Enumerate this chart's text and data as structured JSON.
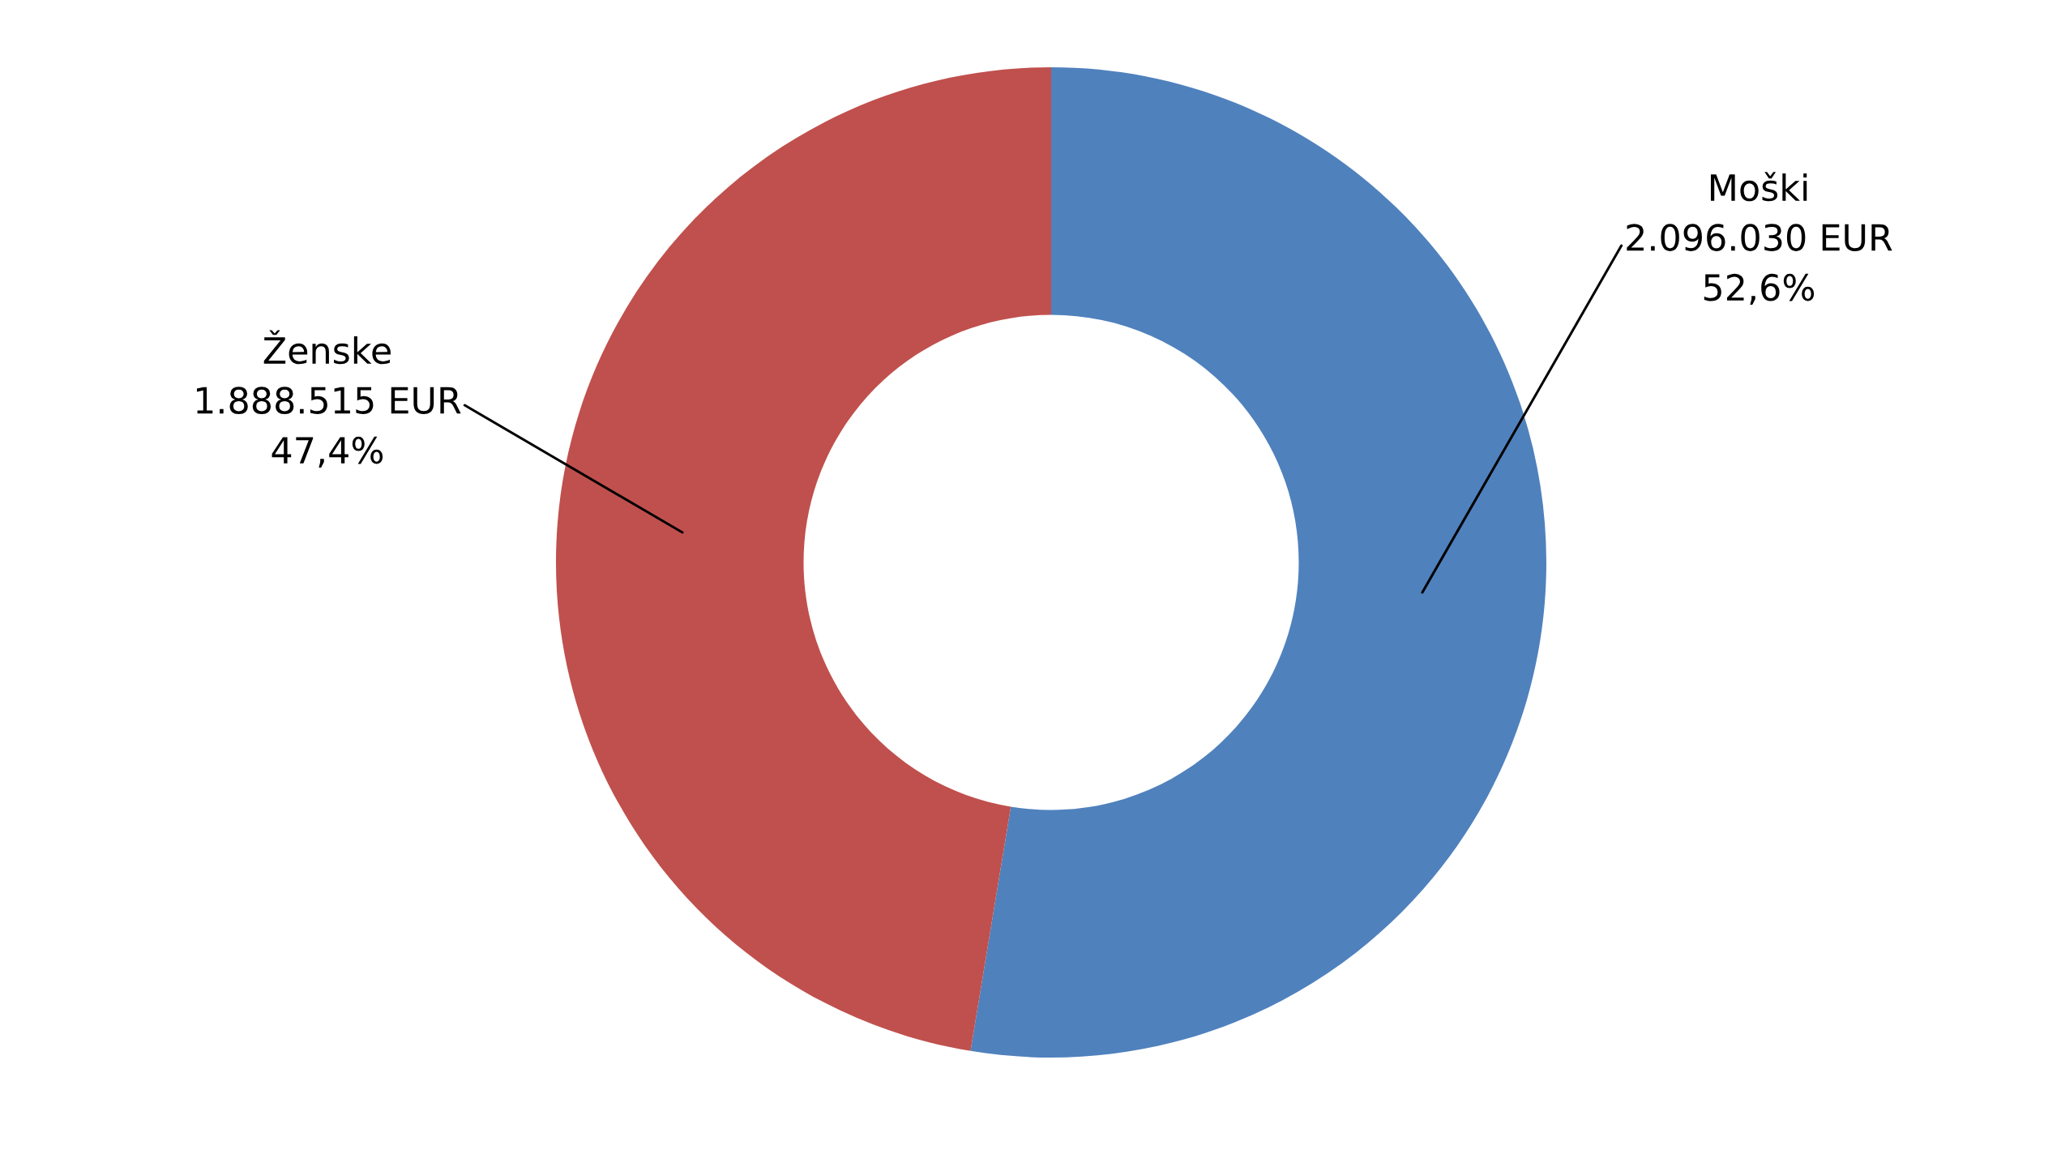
{
  "chart_data": {
    "type": "donut",
    "categories": [
      "Moški",
      "Ženske"
    ],
    "values": [
      2096030,
      1888515
    ],
    "colors": [
      "#4f81bd",
      "#c0504d"
    ],
    "value_labels": [
      "2.096.030 EUR\n52,6%",
      "1.888.515 EUR\n47,4%"
    ]
  }
}
